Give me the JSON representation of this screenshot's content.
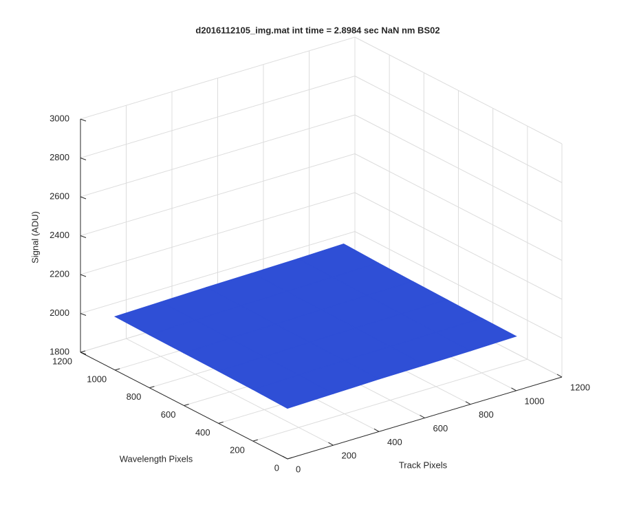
{
  "chart_data": {
    "type": "surface",
    "title": "d2016112105_img.mat int time = 2.8984 sec  NaN nm BS02",
    "xlabel": "Track Pixels",
    "ylabel": "Wavelength Pixels",
    "zlabel": "Signal (ADU)",
    "x": [
      0,
      200,
      400,
      600,
      800,
      1000
    ],
    "y": [
      0,
      200,
      400,
      600,
      800,
      1000
    ],
    "z": [
      [
        2060,
        2065,
        2070,
        2072,
        2075,
        2080
      ],
      [
        2065,
        2070,
        2074,
        2076,
        2078,
        2082
      ],
      [
        2068,
        2072,
        2076,
        2080,
        2082,
        2085
      ],
      [
        2070,
        2075,
        2078,
        2082,
        2085,
        2088
      ],
      [
        2072,
        2078,
        2082,
        2085,
        2088,
        2092
      ],
      [
        2075,
        2080,
        2085,
        2088,
        2092,
        2098
      ]
    ],
    "color": "#2f4fd6",
    "xlim": [
      0,
      1200
    ],
    "ylim": [
      0,
      1200
    ],
    "zlim": [
      1800,
      3000
    ],
    "xticks": [
      0,
      200,
      400,
      600,
      800,
      1000,
      1200
    ],
    "yticks": [
      0,
      200,
      400,
      600,
      800,
      1000,
      1200
    ],
    "zticks": [
      1800,
      2000,
      2200,
      2400,
      2600,
      2800,
      3000
    ],
    "grid": true
  }
}
